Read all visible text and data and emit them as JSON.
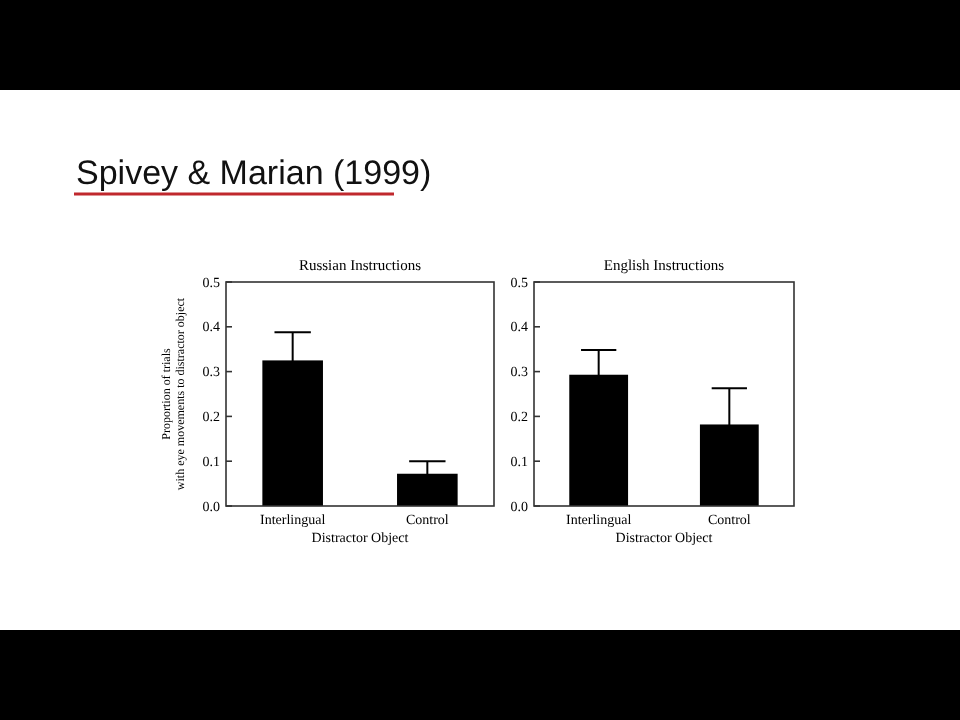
{
  "chart_data": [
    {
      "type": "bar",
      "title": "Russian Instructions",
      "xlabel": "Distractor Object",
      "ylabel": "Proportion of trials with eye movements to distractor object",
      "annotations": [
        "Spivey & Marian (1999)"
      ],
      "categories": [
        "Interlingual",
        "Control"
      ],
      "values": [
        0.325,
        0.072
      ],
      "errors": [
        0.063,
        0.028
      ],
      "color": "#000000",
      "ylim": [
        0,
        0.5
      ],
      "yticks": [
        {
          "value": 0,
          "label": "0.0"
        },
        0.1,
        0.2,
        0.3,
        0.4,
        0.5
      ],
      "grid": false
    },
    {
      "type": "bar",
      "title": "English Instructions",
      "xlabel": "Distractor Object",
      "categories": [
        "Interlingual",
        "Control"
      ],
      "values": [
        0.293,
        0.182
      ],
      "errors": [
        0.055,
        0.081
      ],
      "color": "#000000",
      "ylim": [
        0,
        0.5
      ],
      "yticks": [
        {
          "value": 0,
          "label": "0.0"
        },
        0.1,
        0.2,
        0.3,
        0.4,
        0.5
      ],
      "grid": false
    }
  ]
}
